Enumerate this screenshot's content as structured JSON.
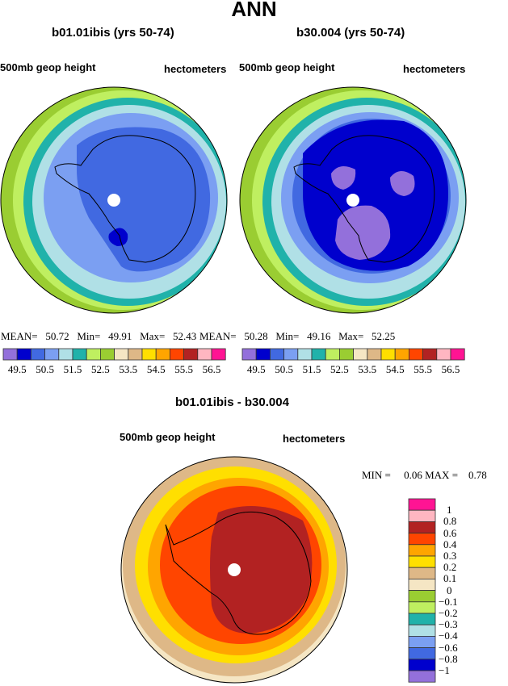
{
  "title": "ANN",
  "panels": [
    {
      "title": "b01.01ibis (yrs 50-74)",
      "left_label": "500mb geop height",
      "right_label": "hectometers",
      "stats": {
        "mean_label": "MEAN=",
        "mean": "50.72",
        "min_label": "Min=",
        "min": "49.91",
        "max_label": "Max=",
        "max": "52.43"
      }
    },
    {
      "title": "b30.004 (yrs 50-74)",
      "left_label": "500mb geop height",
      "right_label": "hectometers",
      "stats": {
        "mean_label": "MEAN=",
        "mean": "50.28",
        "min_label": "Min=",
        "min": "49.16",
        "max_label": "Max=",
        "max": "52.25"
      }
    },
    {
      "title": "b01.01ibis - b30.004",
      "left_label": "500mb geop height",
      "right_label": "hectometers",
      "stats": {
        "min_label": "MIN =",
        "min": "0.06",
        "max_label": "MAX =",
        "max": "0.78"
      }
    }
  ],
  "colors": [
    "#9370DB",
    "#0000CD",
    "#4169E1",
    "#7B9FF2",
    "#B0E0E6",
    "#20B2AA",
    "#BFEF60",
    "#9ACD32",
    "#F5E6C4",
    "#DEB887",
    "#FFDF00",
    "#FFA500",
    "#FF4500",
    "#B22222",
    "#FFB6C1",
    "#FF1493"
  ],
  "labelbar_levels": [
    "49.5",
    "50.5",
    "51.5",
    "52.5",
    "53.5",
    "54.5",
    "55.5",
    "56.5"
  ],
  "diff_levels": [
    "1",
    "0.8",
    "0.6",
    "0.4",
    "0.3",
    "0.2",
    "0.1",
    "0",
    "−0.1",
    "−0.2",
    "−0.3",
    "−0.4",
    "−0.6",
    "−0.8",
    "−1"
  ]
}
